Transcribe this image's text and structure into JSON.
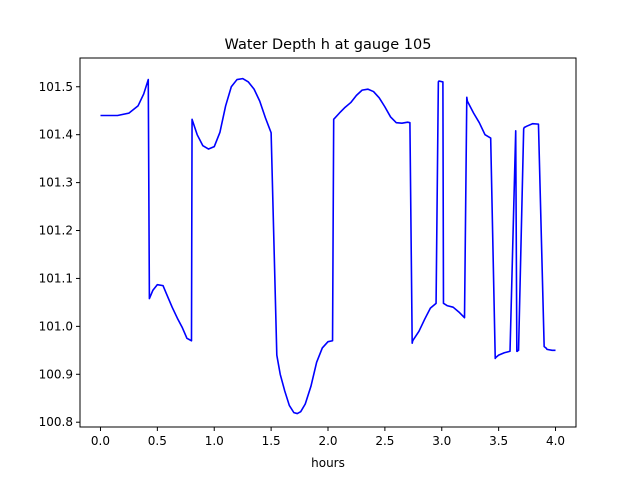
{
  "chart_data": {
    "type": "line",
    "title": "Water Depth h at gauge 105",
    "xlabel": "hours",
    "ylabel": "",
    "xlim": [
      -0.18,
      4.18
    ],
    "ylim": [
      100.79,
      101.56
    ],
    "xticks": [
      0.0,
      0.5,
      1.0,
      1.5,
      2.0,
      2.5,
      3.0,
      3.5,
      4.0
    ],
    "xtick_labels": [
      "0.0",
      "0.5",
      "1.0",
      "1.5",
      "2.0",
      "2.5",
      "3.0",
      "3.5",
      "4.0"
    ],
    "yticks": [
      100.8,
      100.9,
      101.0,
      101.1,
      101.2,
      101.3,
      101.4,
      101.5
    ],
    "ytick_labels": [
      "100.8",
      "100.9",
      "101.0",
      "101.1",
      "101.2",
      "101.3",
      "101.4",
      "101.5"
    ],
    "grid": false,
    "series": [
      {
        "color": "#0000ff",
        "x": [
          0.0,
          0.15,
          0.25,
          0.33,
          0.38,
          0.42,
          0.43,
          0.46,
          0.5,
          0.55,
          0.58,
          0.63,
          0.68,
          0.72,
          0.76,
          0.8,
          0.805,
          0.85,
          0.9,
          0.95,
          1.0,
          1.05,
          1.1,
          1.15,
          1.2,
          1.25,
          1.3,
          1.35,
          1.4,
          1.45,
          1.5,
          1.55,
          1.565,
          1.58,
          1.62,
          1.66,
          1.7,
          1.73,
          1.76,
          1.8,
          1.85,
          1.9,
          1.95,
          2.0,
          2.04,
          2.05,
          2.1,
          2.15,
          2.2,
          2.25,
          2.3,
          2.35,
          2.4,
          2.45,
          2.5,
          2.55,
          2.6,
          2.65,
          2.7,
          2.72,
          2.74,
          2.745,
          2.8,
          2.85,
          2.9,
          2.95,
          2.97,
          2.975,
          3.01,
          3.015,
          3.05,
          3.1,
          3.15,
          3.2,
          3.22,
          3.225,
          3.28,
          3.33,
          3.38,
          3.43,
          3.47,
          3.475,
          3.5,
          3.55,
          3.6,
          3.65,
          3.66,
          3.665,
          3.67,
          3.675,
          3.72,
          3.725,
          3.75,
          3.8,
          3.85,
          3.9,
          3.92,
          3.925,
          3.97,
          4.0
        ],
        "y": [
          101.44,
          101.44,
          101.445,
          101.46,
          101.485,
          101.515,
          101.058,
          101.075,
          101.087,
          101.085,
          101.068,
          101.04,
          101.015,
          100.997,
          100.975,
          100.97,
          101.432,
          101.4,
          101.377,
          101.37,
          101.375,
          101.405,
          101.46,
          101.5,
          101.515,
          101.517,
          101.51,
          101.495,
          101.47,
          101.435,
          101.404,
          100.94,
          100.92,
          100.9,
          100.865,
          100.835,
          100.82,
          100.818,
          100.822,
          100.838,
          100.875,
          100.925,
          100.955,
          100.968,
          100.97,
          101.432,
          101.445,
          101.457,
          101.467,
          101.482,
          101.493,
          101.495,
          101.49,
          101.477,
          101.458,
          101.437,
          101.425,
          101.424,
          101.426,
          101.425,
          100.965,
          100.97,
          100.99,
          101.015,
          101.038,
          101.048,
          101.51,
          101.512,
          101.51,
          101.048,
          101.043,
          101.04,
          101.03,
          101.018,
          101.478,
          101.47,
          101.445,
          101.425,
          101.4,
          101.393,
          100.933,
          100.935,
          100.94,
          100.945,
          100.948,
          101.408,
          100.948,
          100.948,
          100.95,
          100.95,
          101.412,
          101.415,
          101.418,
          101.423,
          101.422,
          100.958,
          100.954,
          100.952,
          100.95,
          100.95
        ]
      }
    ]
  }
}
